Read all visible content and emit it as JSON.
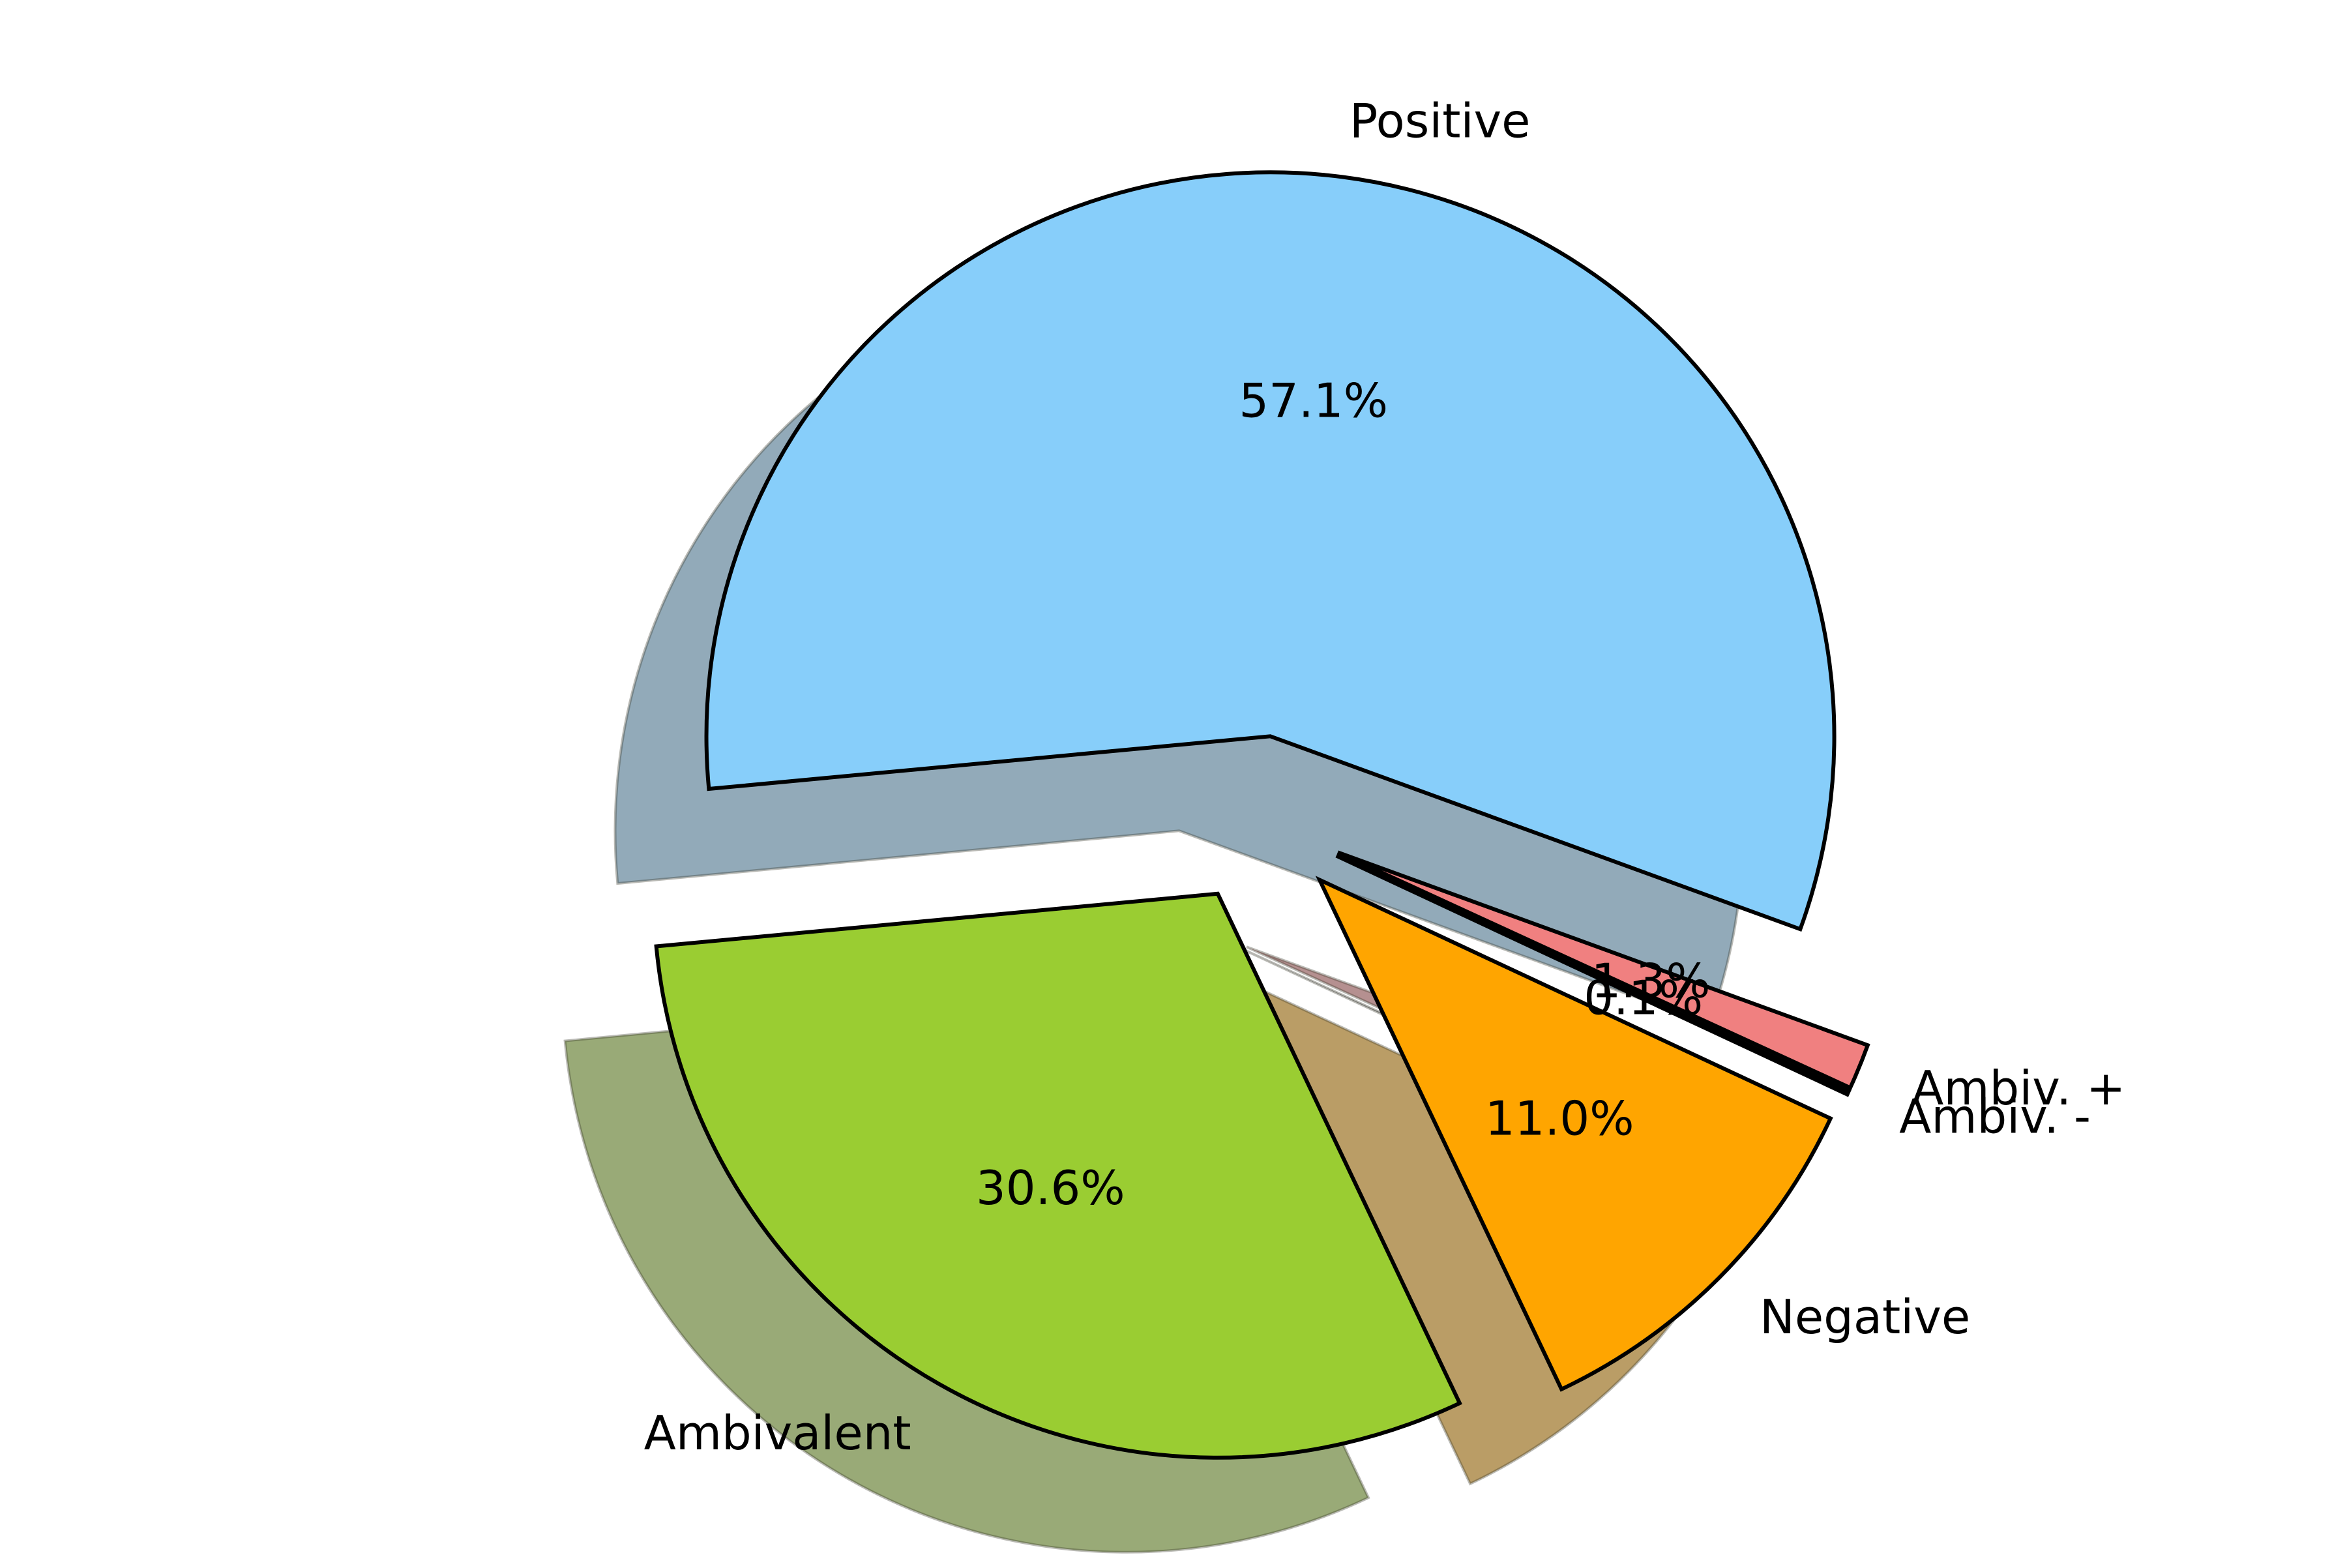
{
  "chart_data": {
    "type": "pie",
    "categories": [
      "Positive",
      "Ambivalent",
      "Negative",
      "Ambiv. -",
      "Ambiv. +"
    ],
    "values": [
      57.1,
      30.6,
      11.0,
      0.1,
      1.3
    ],
    "autopct_labels": [
      "57.1%",
      "30.6%",
      "11.0%",
      "0.1%",
      "1.3%"
    ],
    "colors": [
      "#87CEFA",
      "#9ACD32",
      "#FFA500",
      "#000000",
      "#F08080"
    ],
    "explode": [
      0.15,
      0.15,
      0.15,
      0.15,
      0.15
    ],
    "start_angle_deg": -20,
    "counterclockwise": true,
    "shadow": true,
    "edge_color": "#000000"
  }
}
